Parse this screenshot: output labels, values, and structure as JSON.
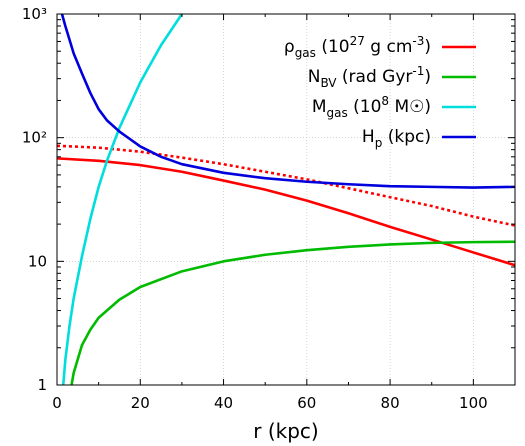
{
  "chart_data": {
    "type": "line",
    "xlabel": "r (kpc)",
    "ylabel": "",
    "xlim": [
      0,
      110
    ],
    "ylim": [
      1,
      1000
    ],
    "y_scale": "log",
    "grid": true,
    "legend_position": "top-right",
    "x_ticks": [
      "0",
      "20",
      "40",
      "60",
      "80",
      "100"
    ],
    "y_ticks": [
      "1",
      "10",
      "10²",
      "10³"
    ],
    "series": [
      {
        "name": "ρgas (10²⁷ g cm⁻³)",
        "legend": {
          "base": "ρ",
          "sub": "gas",
          "rest": " (10",
          "sup": "27",
          "tail": " g cm",
          "sup2": "-3",
          "end": ")"
        },
        "color": "#ff0000",
        "style": "solid",
        "x": [
          0,
          10,
          20,
          30,
          40,
          50,
          60,
          70,
          80,
          90,
          100,
          110
        ],
        "y": [
          68,
          65,
          60,
          53,
          45,
          38,
          31,
          24.5,
          19,
          15,
          11.8,
          9.3
        ]
      },
      {
        "name": "",
        "color": "#ff0000",
        "style": "dotted",
        "x": [
          0,
          10,
          20,
          30,
          40,
          50,
          60,
          70,
          80,
          90,
          100,
          110
        ],
        "y": [
          86,
          83,
          77,
          69,
          61,
          53,
          46,
          39,
          33,
          28,
          23,
          19.5
        ]
      },
      {
        "name": "NBV (rad Gyr⁻¹)",
        "legend": {
          "base": "N",
          "sub": "BV",
          "rest": " (rad Gyr",
          "sup": "-1",
          "tail": ")",
          "sup2": "",
          "end": ""
        },
        "color": "#00bb00",
        "style": "solid",
        "x": [
          3.5,
          4,
          6,
          8,
          10,
          15,
          20,
          30,
          40,
          50,
          60,
          70,
          80,
          90,
          100,
          110
        ],
        "y": [
          1,
          1.25,
          2.1,
          2.8,
          3.5,
          4.9,
          6.2,
          8.3,
          10.0,
          11.3,
          12.3,
          13.1,
          13.7,
          14.1,
          14.3,
          14.4
        ]
      },
      {
        "name": "Mgas (10⁸ M☉)",
        "legend": {
          "base": "M",
          "sub": "gas",
          "rest": " (10",
          "sup": "8",
          "tail": " M",
          "sup2": "",
          "end": "☉)"
        },
        "color": "#00dddd",
        "style": "solid",
        "x": [
          1.5,
          2,
          3,
          4,
          6,
          8,
          10,
          12,
          15,
          20,
          25,
          30
        ],
        "y": [
          1,
          1.6,
          3,
          5,
          11,
          22,
          40,
          65,
          120,
          280,
          560,
          1000
        ]
      },
      {
        "name": "Hp (kpc)",
        "legend": {
          "base": "H",
          "sub": "p",
          "rest": " (kpc)",
          "sup": "",
          "tail": "",
          "sup2": "",
          "end": ""
        },
        "color": "#0000dd",
        "style": "solid",
        "x": [
          1.2,
          2,
          3,
          4,
          6,
          8,
          10,
          12,
          15,
          20,
          25,
          30,
          40,
          50,
          60,
          70,
          80,
          90,
          100,
          110
        ],
        "y": [
          1000,
          800,
          620,
          480,
          330,
          230,
          170,
          138,
          112,
          85,
          70,
          61,
          52,
          47,
          44,
          42,
          40.5,
          40,
          39.5,
          40
        ]
      }
    ]
  }
}
